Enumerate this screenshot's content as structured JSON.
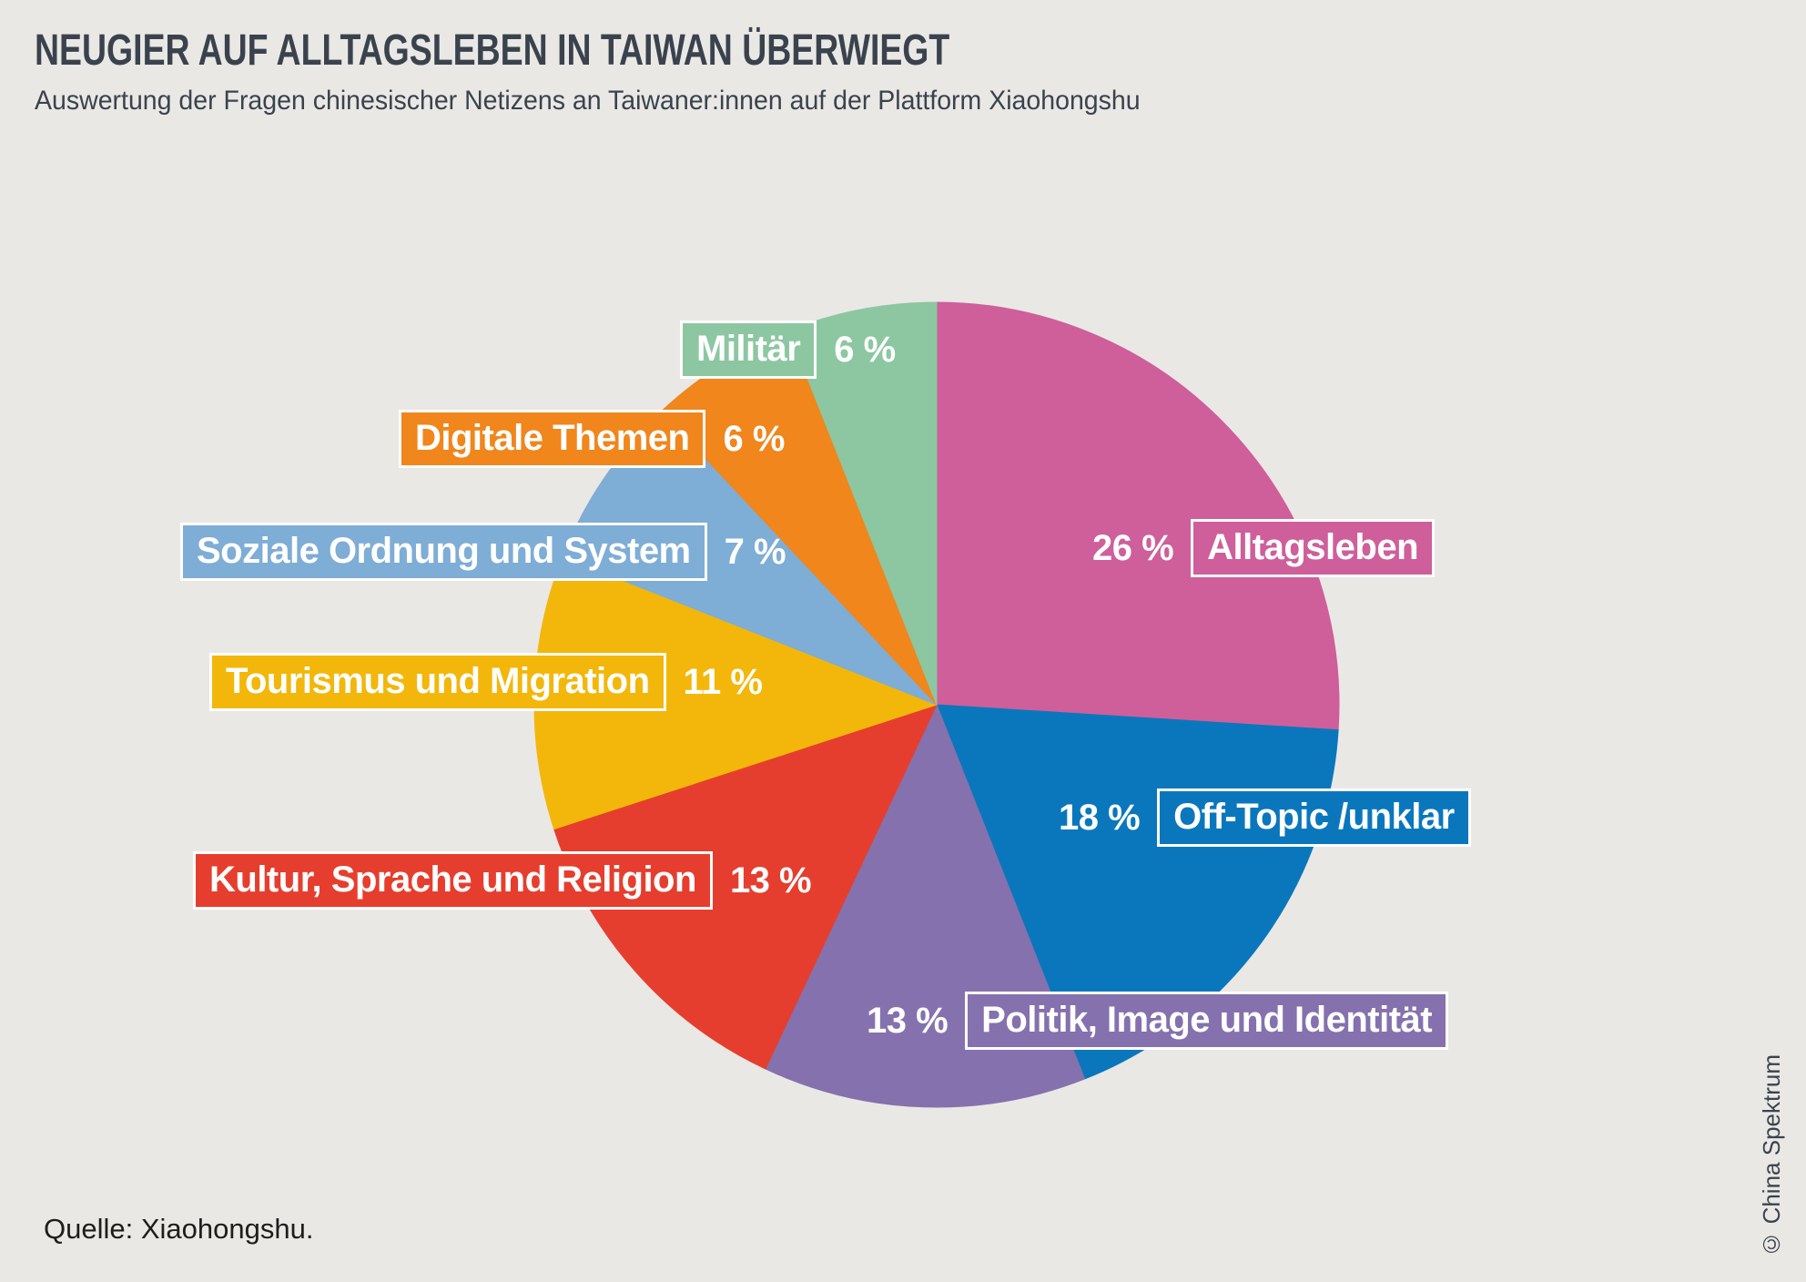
{
  "header": {
    "title": "NEUGIER AUF ALLTAGSLEBEN IN TAIWAN ÜBERWIEGT",
    "subtitle": "Auswertung der Fragen chinesischer Netizens an Taiwaner:innen auf der Plattform Xiaohongshu"
  },
  "footer": {
    "source": "Quelle: Xiaohongshu."
  },
  "credit": "© China Spektrum",
  "colors": {
    "background": "#EAE8E5",
    "heading_text": "#3A434D",
    "label_text": "#FFFFFF",
    "label_border": "#FFFFFF"
  },
  "chart_data": {
    "type": "pie",
    "title": "NEUGIER AUF ALLTAGSLEBEN IN TAIWAN ÜBERWIEGT",
    "subtitle": "Auswertung der Fragen chinesischer Netizens an Taiwaner:innen auf der Plattform Xiaohongshu",
    "unit": "%",
    "start_angle_deg": 0,
    "direction": "clockwise",
    "legend_position": "callout-labels",
    "slices": [
      {
        "label": "Alltagsleben",
        "value": 26,
        "pct_label": "26 %",
        "color": "#CE5F9B",
        "side": "right"
      },
      {
        "label": "Off-Topic /unklar",
        "value": 18,
        "pct_label": "18 %",
        "color": "#0A77BD",
        "side": "right"
      },
      {
        "label": "Politik, Image und Identität",
        "value": 13,
        "pct_label": "13 %",
        "color": "#8571AD",
        "side": "right"
      },
      {
        "label": "Kultur, Sprache und Religion",
        "value": 13,
        "pct_label": "13 %",
        "color": "#E63E2E",
        "side": "left"
      },
      {
        "label": "Tourismus und Migration",
        "value": 11,
        "pct_label": "11 %",
        "color": "#F2B70A",
        "side": "left"
      },
      {
        "label": "Soziale Ordnung und System",
        "value": 7,
        "pct_label": "7 %",
        "color": "#7EADD5",
        "side": "left"
      },
      {
        "label": "Digitale Themen",
        "value": 6,
        "pct_label": "6 %",
        "color": "#F0861C",
        "side": "left"
      },
      {
        "label": "Militär",
        "value": 6,
        "pct_label": "6 %",
        "color": "#8CC7A1",
        "side": "left"
      }
    ]
  }
}
